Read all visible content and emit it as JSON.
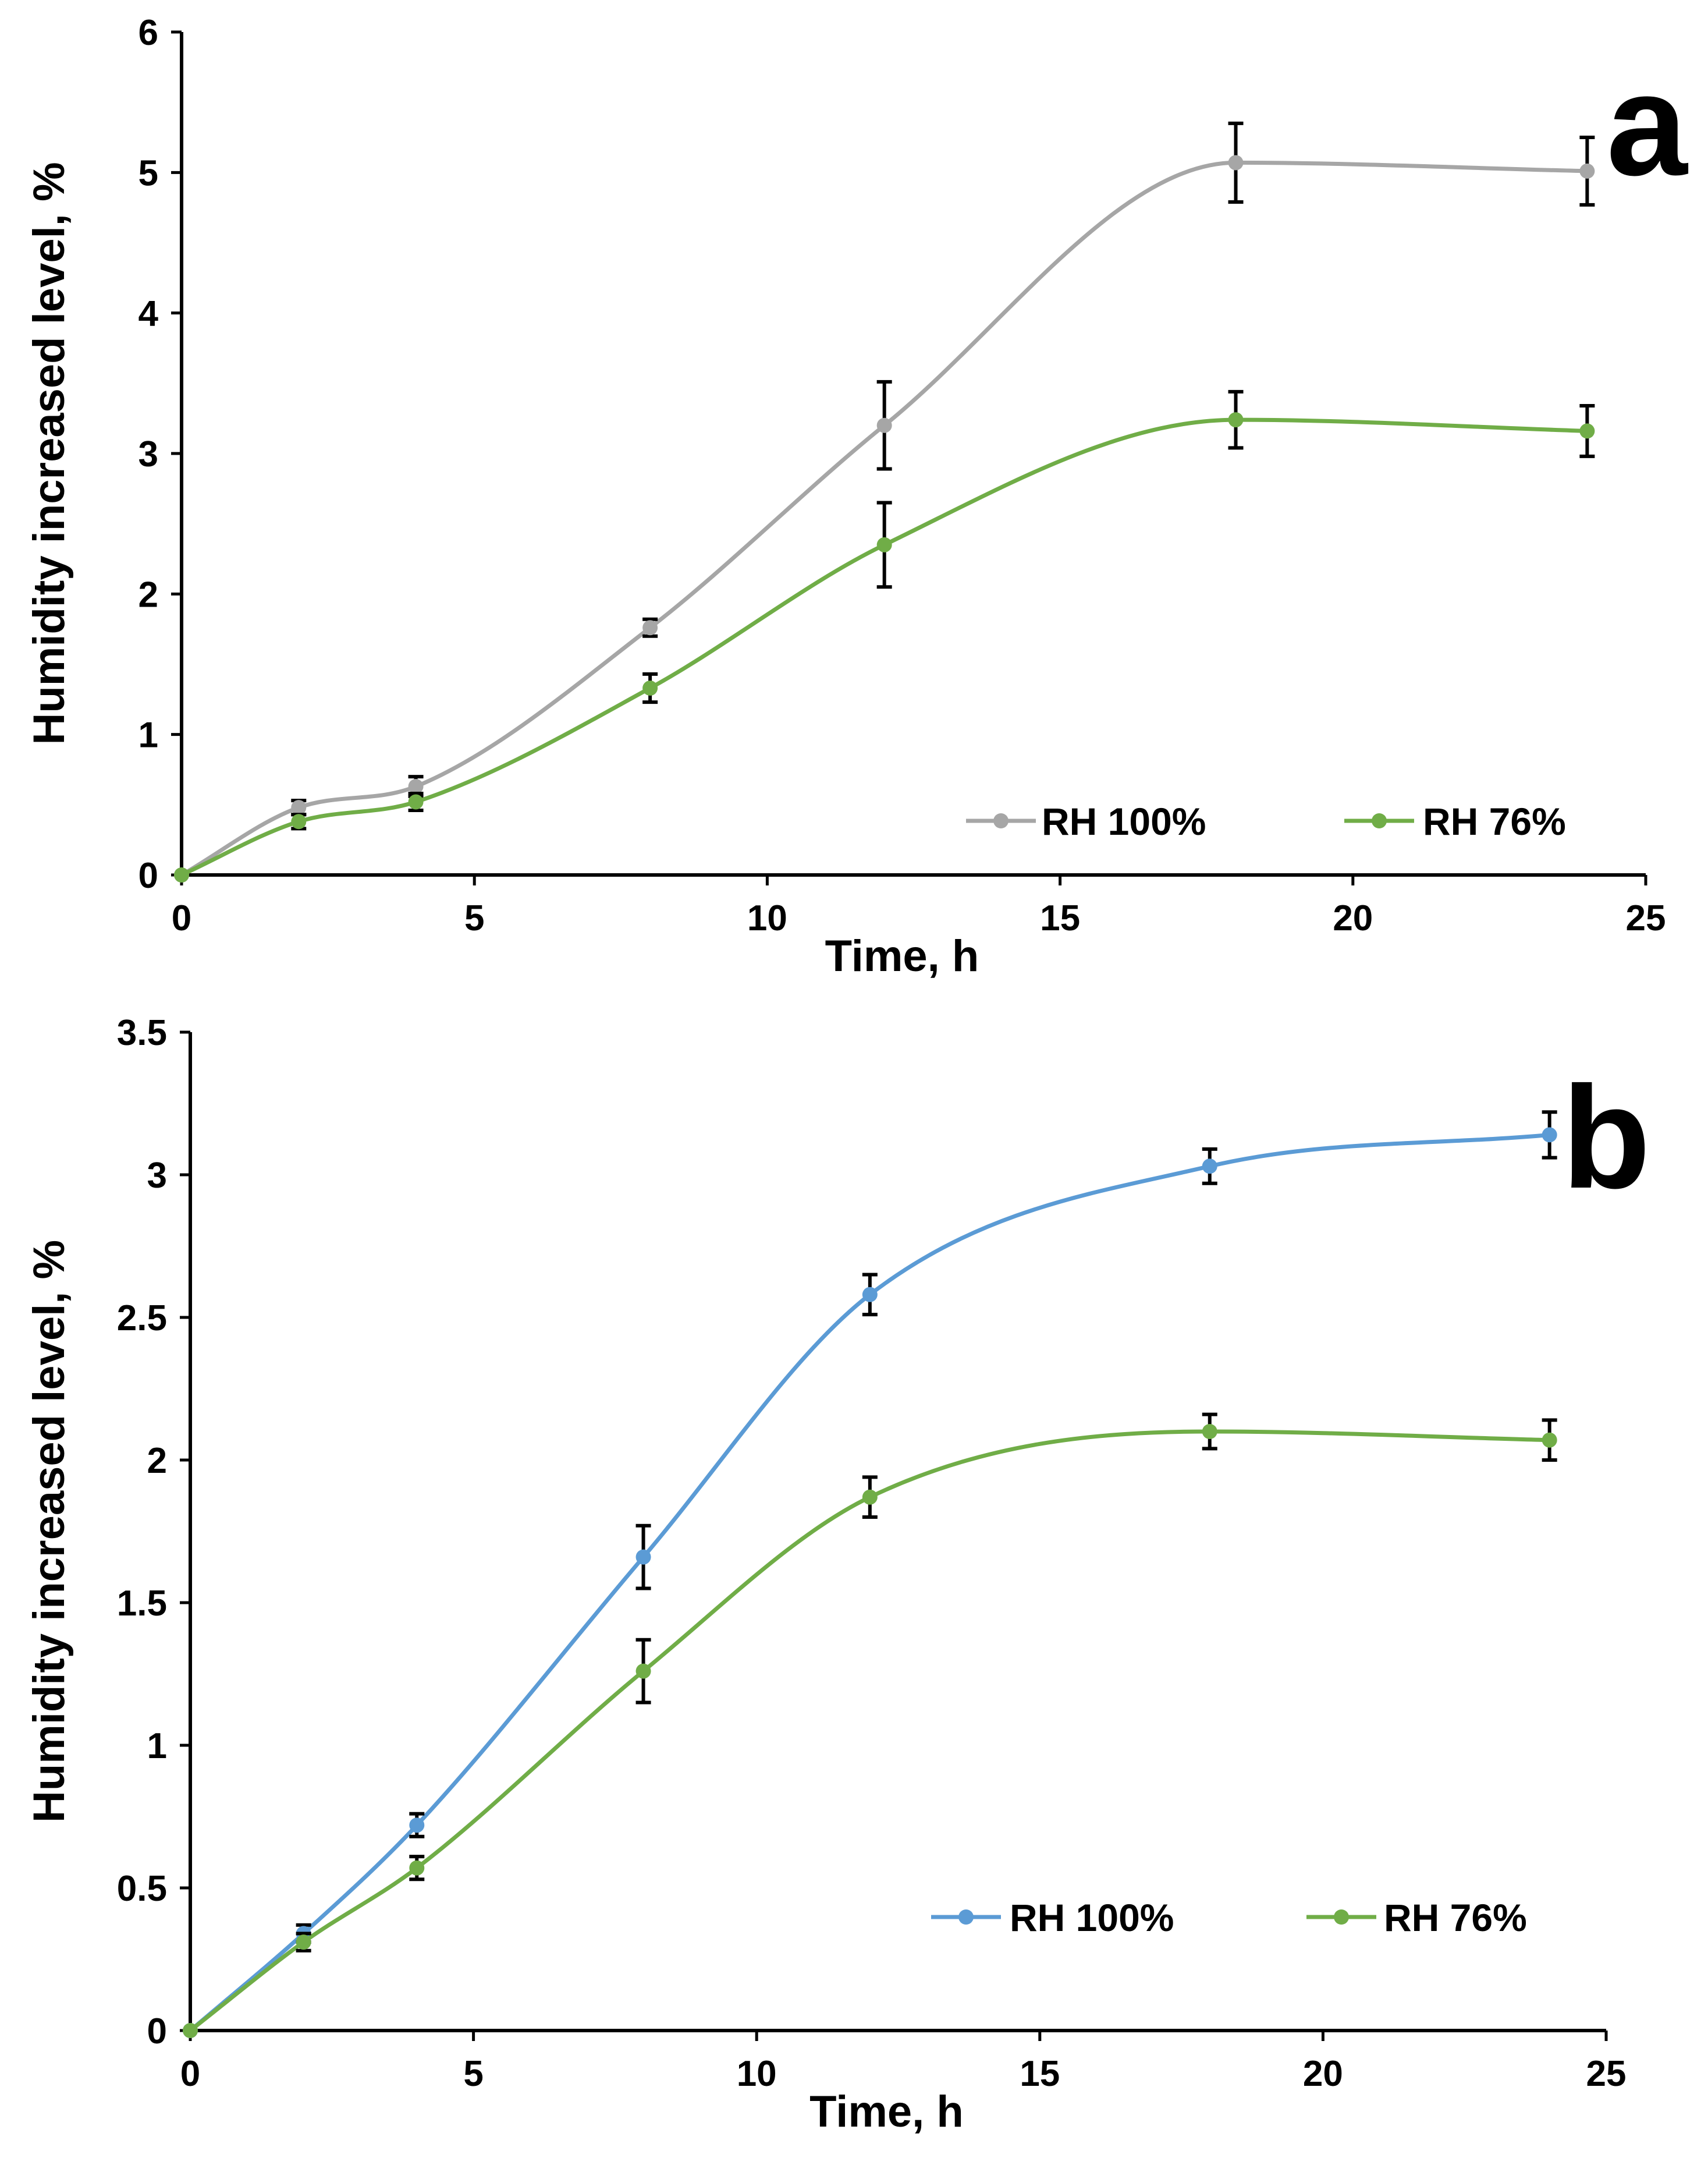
{
  "chart_data": [
    {
      "type": "line",
      "panel_label": "a",
      "xlabel": "Time, h",
      "ylabel": "Humidity increased level, %",
      "xlim": [
        0,
        25
      ],
      "ylim": [
        0,
        6
      ],
      "xticks": [
        0,
        5,
        10,
        15,
        20,
        25
      ],
      "yticks": [
        0,
        1,
        2,
        3,
        4,
        5,
        6
      ],
      "ytick_labels": [
        "0",
        "1",
        "2",
        "3",
        "4",
        "5",
        "6"
      ],
      "x": [
        0,
        2,
        4,
        8,
        12,
        18,
        24
      ],
      "series": [
        {
          "name": "RH 100%",
          "color": "#a6a6a6",
          "values": [
            0,
            0.48,
            0.63,
            1.76,
            3.2,
            5.07,
            5.01
          ],
          "errors": [
            0,
            0.05,
            0.07,
            0.06,
            0.31,
            0.28,
            0.24
          ]
        },
        {
          "name": "RH 76%",
          "color": "#70ad47",
          "values": [
            0,
            0.38,
            0.52,
            1.33,
            2.35,
            3.24,
            3.16
          ],
          "errors": [
            0,
            0.05,
            0.06,
            0.1,
            0.3,
            0.2,
            0.18
          ]
        }
      ],
      "legend": "bottom-right"
    },
    {
      "type": "line",
      "panel_label": "b",
      "xlabel": "Time, h",
      "ylabel": "Humidity increased level, %",
      "xlim": [
        0,
        25
      ],
      "ylim": [
        0,
        3.5
      ],
      "xticks": [
        0,
        5,
        10,
        15,
        20,
        25
      ],
      "yticks": [
        0,
        0.5,
        1,
        1.5,
        2,
        2.5,
        3,
        3.5
      ],
      "ytick_labels": [
        "0",
        "0.5",
        "1",
        "1.5",
        "2",
        "2.5",
        "3",
        "3.5"
      ],
      "x": [
        0,
        2,
        4,
        8,
        12,
        18,
        24
      ],
      "series": [
        {
          "name": "RH 100%",
          "color": "#5b9bd5",
          "values": [
            0,
            0.34,
            0.72,
            1.66,
            2.58,
            3.03,
            3.14
          ],
          "errors": [
            0,
            0.03,
            0.04,
            0.11,
            0.07,
            0.06,
            0.08
          ]
        },
        {
          "name": "RH 76%",
          "color": "#70ad47",
          "values": [
            0,
            0.31,
            0.57,
            1.26,
            1.87,
            2.1,
            2.07
          ],
          "errors": [
            0,
            0.03,
            0.04,
            0.11,
            0.07,
            0.06,
            0.07
          ]
        }
      ],
      "legend": "bottom-right"
    }
  ]
}
